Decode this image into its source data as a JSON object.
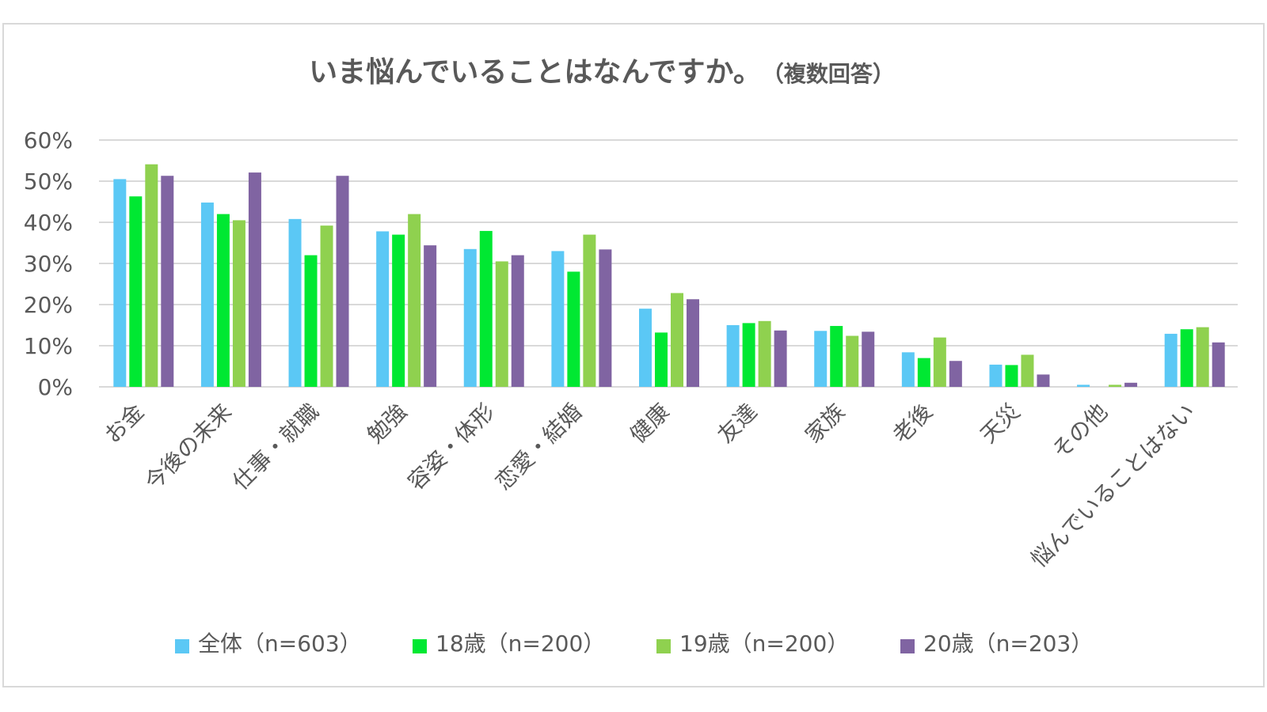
{
  "chart_data": {
    "type": "bar",
    "title": "いま悩んでいることはなんですか。",
    "subtitle": "（複数回答）",
    "categories": [
      "お金",
      "今後の未来",
      "仕事・就職",
      "勉強",
      "容姿・体形",
      "恋愛・結婚",
      "健康",
      "友達",
      "家族",
      "老後",
      "天災",
      "その他",
      "悩んでいることはない"
    ],
    "y_ticks": [
      "0%",
      "10%",
      "20%",
      "30%",
      "40%",
      "50%",
      "60%"
    ],
    "ylim": [
      0,
      60
    ],
    "grid": true,
    "legend_position": "bottom",
    "series": [
      {
        "name": "全体（n=603）",
        "color": "#5BC8F5",
        "values": [
          50.5,
          44.8,
          40.8,
          37.8,
          33.5,
          33.0,
          19.0,
          15.0,
          13.6,
          8.4,
          5.4,
          0.5,
          12.9
        ]
      },
      {
        "name": "18歳（n=200）",
        "color": "#00E832",
        "values": [
          46.3,
          42.0,
          32.0,
          37.0,
          37.9,
          28.0,
          13.2,
          15.5,
          14.8,
          7.0,
          5.3,
          0.0,
          14.0
        ]
      },
      {
        "name": "19歳（n=200）",
        "color": "#8FD14F",
        "values": [
          54.1,
          40.5,
          39.2,
          42.0,
          30.5,
          37.0,
          22.8,
          16.0,
          12.4,
          12.0,
          7.8,
          0.5,
          14.5
        ]
      },
      {
        "name": "20歳（n=203）",
        "color": "#8064A2",
        "values": [
          51.3,
          52.1,
          51.3,
          34.4,
          32.0,
          33.4,
          21.3,
          13.7,
          13.4,
          6.3,
          3.0,
          1.0,
          10.8
        ]
      }
    ]
  },
  "colors": {
    "gridline": "#d9d9d9",
    "axis_text": "#595959"
  }
}
